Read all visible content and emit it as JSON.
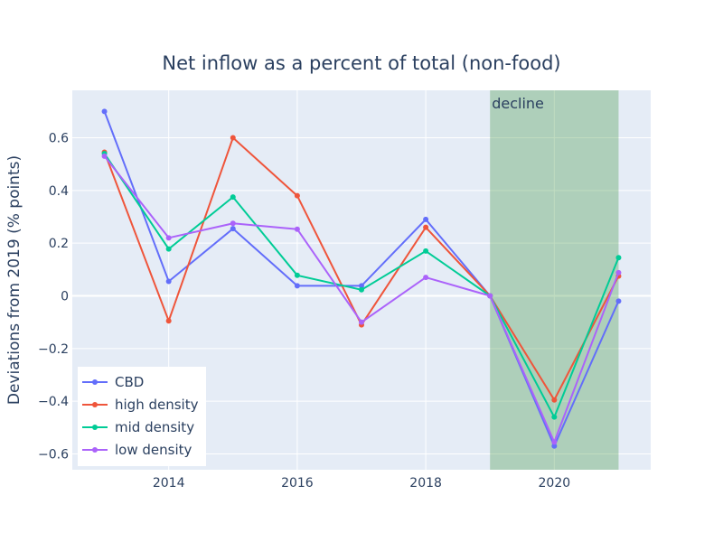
{
  "chart_data": {
    "type": "line",
    "title": "Net inflow as a percent of total (non-food)",
    "xlabel": "",
    "ylabel": "Deviations from 2019 (% points)",
    "x": [
      2013,
      2014,
      2015,
      2016,
      2017,
      2018,
      2019,
      2020,
      2021
    ],
    "xlim": [
      2012.5,
      2021.5
    ],
    "ylim": [
      -0.66,
      0.78
    ],
    "x_ticks": [
      2014,
      2016,
      2018,
      2020
    ],
    "x_tick_labels": [
      "2014",
      "2016",
      "2018",
      "2020"
    ],
    "y_ticks": [
      -0.6,
      -0.4,
      -0.2,
      0,
      0.2,
      0.4,
      0.6
    ],
    "y_tick_labels": [
      "−0.6",
      "−0.4",
      "−0.2",
      "0",
      "0.2",
      "0.4",
      "0.6"
    ],
    "grid": true,
    "legend_position": "bottom-left",
    "background_color": "#e5ecf6",
    "shaded_region": {
      "label": "decline",
      "x_start": 2019,
      "x_end": 2021,
      "color": "#2e8b2e"
    },
    "series": [
      {
        "name": "CBD",
        "color": "#636efa",
        "values": [
          0.7,
          0.055,
          0.255,
          0.038,
          0.038,
          0.29,
          0.0,
          -0.57,
          -0.02
        ]
      },
      {
        "name": "high density",
        "color": "#ef553b",
        "values": [
          0.545,
          -0.095,
          0.6,
          0.38,
          -0.11,
          0.26,
          0.0,
          -0.395,
          0.075
        ]
      },
      {
        "name": "mid density",
        "color": "#00cc96",
        "values": [
          0.54,
          0.178,
          0.375,
          0.078,
          0.023,
          0.17,
          0.0,
          -0.46,
          0.145
        ]
      },
      {
        "name": "low density",
        "color": "#ab63fa",
        "values": [
          0.53,
          0.22,
          0.275,
          0.253,
          -0.1,
          0.07,
          0.0,
          -0.555,
          0.088
        ]
      }
    ]
  }
}
